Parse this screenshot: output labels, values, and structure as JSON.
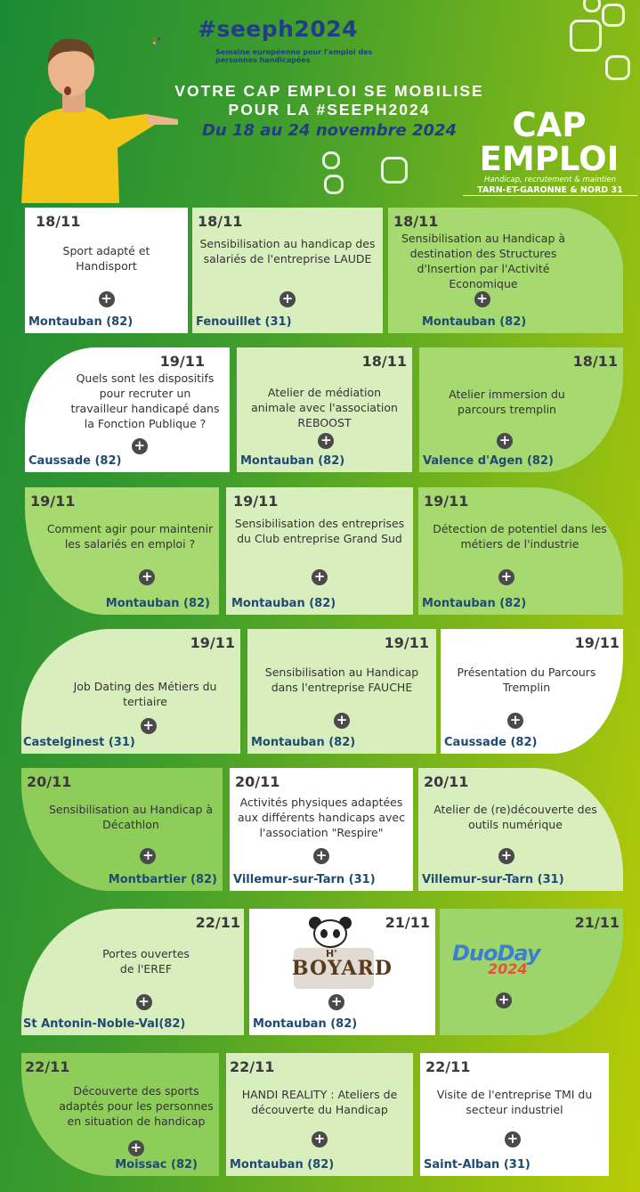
{
  "header": {
    "hashtag": "#seeph2024",
    "hashtag_sub": "Semaine européenne pour l'emploi des personnes handicapées",
    "title_line1": "VOTRE CAP EMPLOI SE MOBILISE",
    "title_line2": "POUR LA #SEEPH2024",
    "dates": "Du 18 au 24 novembre 2024",
    "brand_line1": "CAP",
    "brand_line2": "EMPLOI",
    "brand_sub": "Handicap, recrutement & maintien",
    "brand_region": "TARN-ET-GARONNE & NORD 31"
  },
  "plus_icon": "+",
  "events": [
    {
      "date": "18/11",
      "title": "Sport adapté et Handisport",
      "location": "Montauban (82)"
    },
    {
      "date": "18/11",
      "title": "Sensibilisation au handicap des salariés de l'entreprise LAUDE",
      "location": "Fenouillet (31)"
    },
    {
      "date": "18/11",
      "title": "Sensibilisation au Handicap à destination des Structures d'Insertion par l'Activité Economique",
      "location": "Montauban (82)"
    },
    {
      "date": "19/11",
      "title": "Quels sont les dispositifs pour recruter un travailleur handicapé dans la Fonction Publique ?",
      "location": "Caussade (82)"
    },
    {
      "date": "18/11",
      "title": "Atelier de médiation animale avec l'association REBOOST",
      "location": "Montauban (82)"
    },
    {
      "date": "18/11",
      "title": "Atelier immersion du parcours tremplin",
      "location": "Valence d'Agen (82)"
    },
    {
      "date": "19/11",
      "title": "Comment agir pour maintenir les salariés en emploi ?",
      "location": "Montauban (82)"
    },
    {
      "date": "19/11",
      "title": "Sensibilisation des entreprises du Club entreprise Grand Sud",
      "location": "Montauban (82)"
    },
    {
      "date": "19/11",
      "title": "Détection de potentiel dans les métiers de l'industrie",
      "location": "Montauban (82)"
    },
    {
      "date": "19/11",
      "title": "Job Dating des Métiers du tertiaire",
      "location": "Castelginest (31)"
    },
    {
      "date": "19/11",
      "title": "Sensibilisation au Handicap dans l'entreprise FAUCHE",
      "location": "Montauban (82)"
    },
    {
      "date": "19/11",
      "title": "Présentation du Parcours Tremplin",
      "location": "Caussade (82)"
    },
    {
      "date": "20/11",
      "title": "Sensibilisation au Handicap à Décathlon",
      "location": "Montbartier (82)"
    },
    {
      "date": "20/11",
      "title": "Activités physiques adaptées aux différents handicaps avec l'association \"Respire\"",
      "location": "Villemur-sur-Tarn (31)"
    },
    {
      "date": "20/11",
      "title": "Atelier de (re)découverte des outils numérique",
      "location": "Villemur-sur-Tarn (31)"
    },
    {
      "date": "22/11",
      "title": "Portes ouvertes de l'EREF",
      "location": "St Antonin-Noble-Val(82)"
    },
    {
      "date": "21/11",
      "title": "",
      "logo_text_1": "H'",
      "logo_text_2": "BOYARD",
      "location": "Montauban (82)"
    },
    {
      "date": "21/11",
      "title": "",
      "logo_text_1": "DuoDay",
      "logo_text_2": "2024",
      "location": ""
    },
    {
      "date": "22/11",
      "title": "Découverte des sports adaptés pour les personnes en situation de handicap",
      "location": "Moissac (82)"
    },
    {
      "date": "22/11",
      "title": "HANDI REALITY : Ateliers de découverte du Handicap",
      "location": "Montauban (82)"
    },
    {
      "date": "22/11",
      "title": "Visite de l'entreprise TMI du secteur industriel",
      "location": "Saint-Alban (31)"
    }
  ]
}
